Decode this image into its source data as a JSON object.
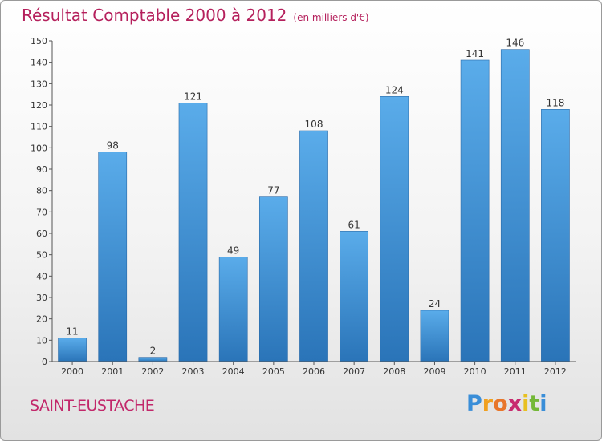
{
  "chart_data": {
    "type": "bar",
    "title": "Résultat Comptable 2000 à 2012",
    "subtitle": "(en milliers d'€)",
    "categories": [
      "2000",
      "2001",
      "2002",
      "2003",
      "2004",
      "2005",
      "2006",
      "2007",
      "2008",
      "2009",
      "2010",
      "2011",
      "2012"
    ],
    "values": [
      11,
      98,
      2,
      121,
      49,
      77,
      108,
      61,
      124,
      24,
      141,
      146,
      118
    ],
    "ylim": [
      0,
      150
    ],
    "yticks": [
      0,
      10,
      20,
      30,
      40,
      50,
      60,
      70,
      80,
      90,
      100,
      110,
      120,
      130,
      140,
      150
    ],
    "xlabel": "",
    "ylabel": "",
    "grid": false,
    "bar_color": "#3d8fd0"
  },
  "place_name": "SAINT-EUSTACHE",
  "logo": {
    "text": "Proxiti",
    "letters": [
      "P",
      "r",
      "o",
      "x",
      "i",
      "t",
      "i"
    ],
    "colors": [
      "#3a8ed8",
      "#f0a020",
      "#e8762a",
      "#c82a6e",
      "#e8c020",
      "#74b838",
      "#3a8ed8"
    ]
  }
}
